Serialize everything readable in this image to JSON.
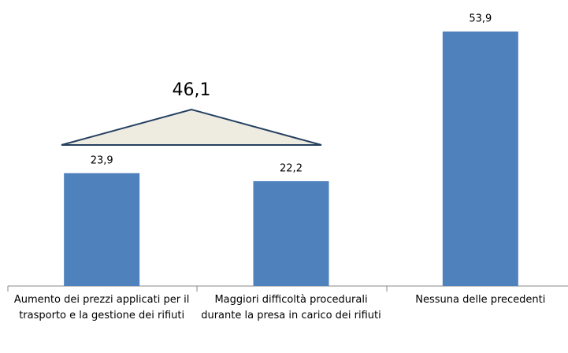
{
  "chart_data": {
    "type": "bar",
    "categories": [
      "Aumento dei prezzi applicati per il trasporto e la gestione dei rifiuti",
      "Maggiori difficoltà procedurali durante la presa in carico dei rifiuti",
      "Nessuna delle precedenti"
    ],
    "values": [
      23.9,
      22.2,
      53.9
    ],
    "value_labels": [
      "23,9",
      "22,2",
      "53,9"
    ],
    "color": "#4f81bd",
    "annotation": "46,1"
  }
}
